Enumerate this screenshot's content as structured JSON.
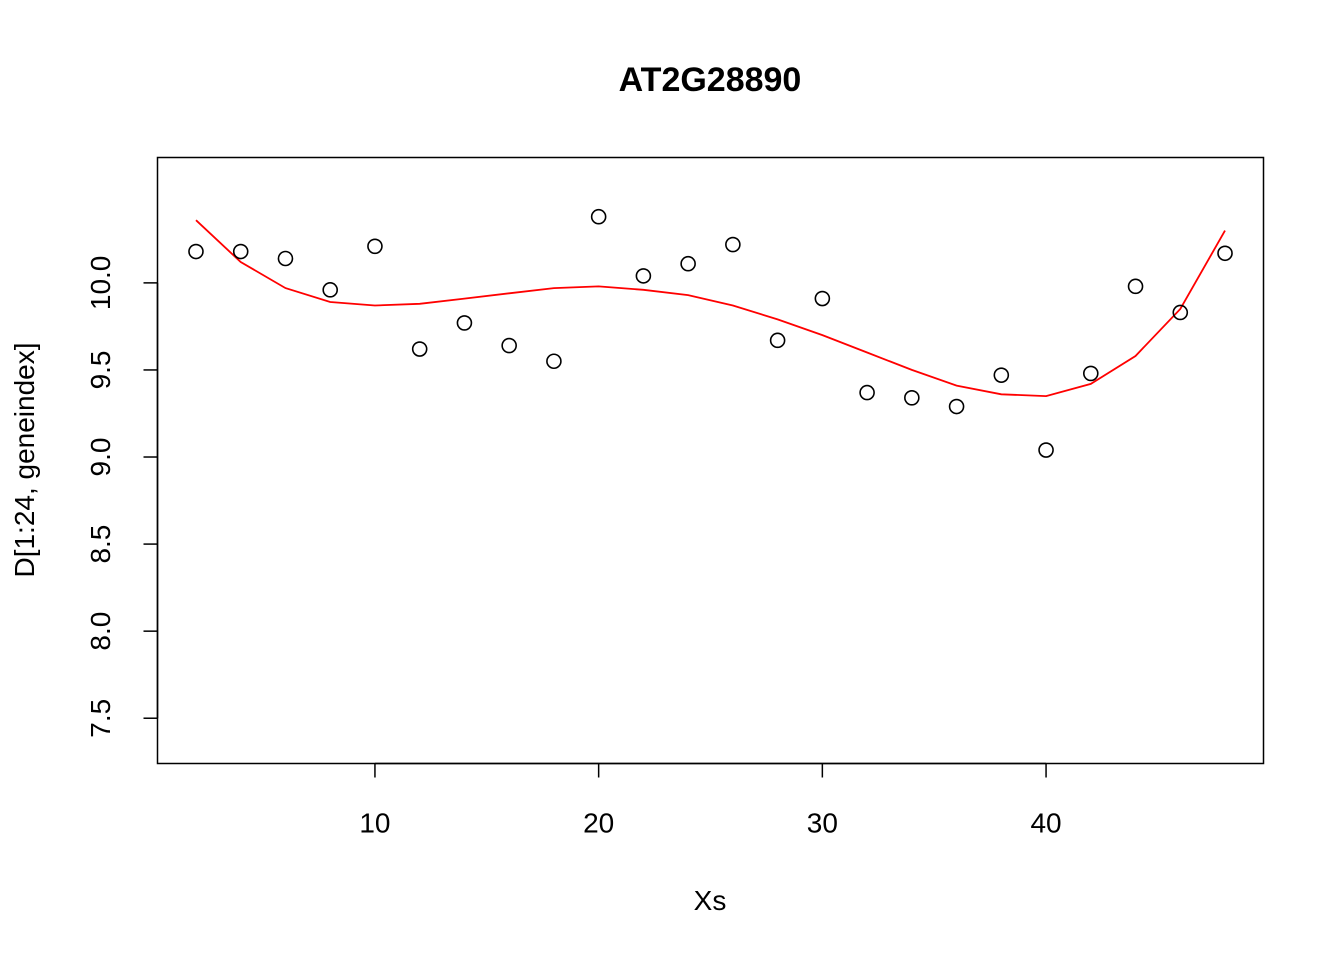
{
  "chart_data": {
    "type": "scatter",
    "title": "AT2G28890",
    "xlabel": "Xs",
    "ylabel": "D[1:24, geneindex]",
    "xlim": [
      0.28,
      49.72
    ],
    "ylim": [
      7.24,
      10.72
    ],
    "x_ticks": [
      10,
      20,
      30,
      40
    ],
    "x_tick_labels": [
      "10",
      "20",
      "30",
      "40"
    ],
    "y_ticks": [
      7.5,
      8.0,
      8.5,
      9.0,
      9.5,
      10.0
    ],
    "y_tick_labels": [
      "7.5",
      "8.0",
      "8.5",
      "9.0",
      "9.5",
      "10.0"
    ],
    "grid": false,
    "series": [
      {
        "kind": "points",
        "color": "#000000",
        "x": [
          2,
          4,
          6,
          8,
          10,
          12,
          14,
          16,
          18,
          20,
          22,
          24,
          26,
          28,
          30,
          32,
          34,
          36,
          38,
          40,
          42,
          44,
          46,
          48
        ],
        "y": [
          10.18,
          10.18,
          10.14,
          9.96,
          10.21,
          9.62,
          9.77,
          9.64,
          9.55,
          10.38,
          10.04,
          10.11,
          10.22,
          9.67,
          9.91,
          9.37,
          9.34,
          9.29,
          9.47,
          9.04,
          9.48,
          9.98,
          9.83,
          10.17
        ]
      },
      {
        "kind": "line",
        "color": "#ff0000",
        "x": [
          2,
          4,
          6,
          8,
          10,
          12,
          14,
          16,
          18,
          20,
          22,
          24,
          26,
          28,
          30,
          32,
          34,
          36,
          38,
          40,
          42,
          44,
          46,
          48
        ],
        "y": [
          10.36,
          10.12,
          9.97,
          9.89,
          9.87,
          9.88,
          9.91,
          9.94,
          9.97,
          9.98,
          9.96,
          9.93,
          9.87,
          9.79,
          9.7,
          9.6,
          9.5,
          9.41,
          9.36,
          9.35,
          9.42,
          9.58,
          9.85,
          10.3
        ]
      }
    ]
  }
}
